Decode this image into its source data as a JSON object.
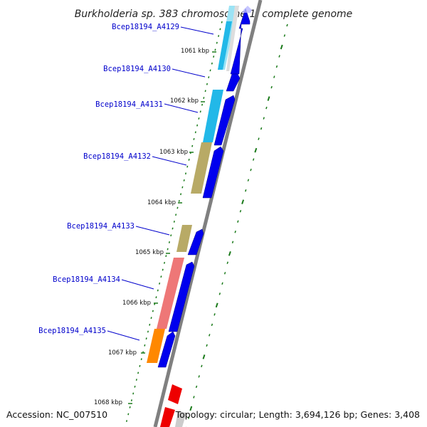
{
  "title": "Burkholderia sp. 383 chromosome 1, complete genome",
  "footer": {
    "accession": "Accession: NC_007510",
    "topology": "Topology: circular; Length: 3,694,126 bp; Genes: 3,408"
  },
  "kbp_ticks": [
    "1061 kbp",
    "1062 kbp",
    "1063 kbp",
    "1064 kbp",
    "1065 kbp",
    "1066 kbp",
    "1067 kbp",
    "1068 kbp"
  ],
  "gene_labels": [
    "Bcep18194_A4129",
    "Bcep18194_A4130",
    "Bcep18194_A4131",
    "Bcep18194_A4132",
    "Bcep18194_A4133",
    "Bcep18194_A4134",
    "Bcep18194_A4135"
  ],
  "colors": {
    "backbone": "#808080",
    "cds_arrow": "#0000ee",
    "rna_arrow": "#ee0000",
    "tick_green": "#1a7a1a",
    "label_blue": "#0000cc",
    "cog_cyan": "#22b8e8",
    "cog_khaki": "#b8aa66",
    "cog_salmon": "#ee7777",
    "cog_orange": "#ff8800"
  }
}
